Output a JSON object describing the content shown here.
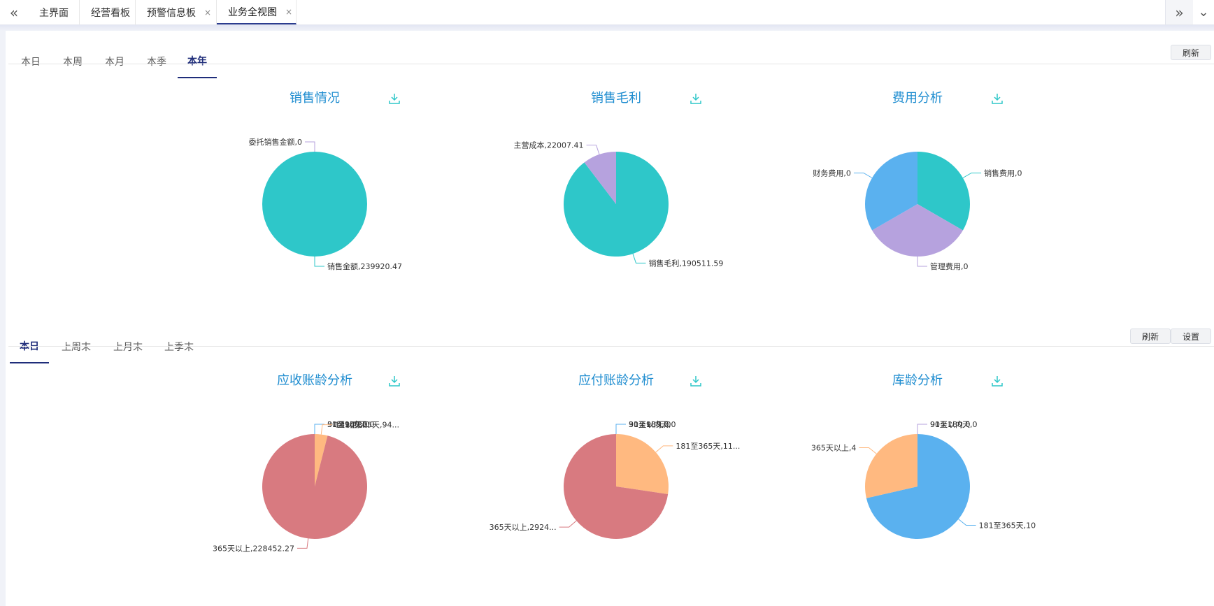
{
  "tabs": [
    {
      "label": "主界面",
      "closable": false,
      "active": false
    },
    {
      "label": "经营看板",
      "closable": false,
      "active": false
    },
    {
      "label": "预警信息板",
      "closable": true,
      "active": false
    },
    {
      "label": "业务全视图",
      "closable": true,
      "active": true
    }
  ],
  "icons": {
    "nav_left": "«",
    "nav_right": "»",
    "dropdown": "⌄",
    "close": "×"
  },
  "section1": {
    "periods": [
      "本日",
      "本周",
      "本月",
      "本季",
      "本年"
    ],
    "active_period": "本年",
    "refresh_label": "刷新"
  },
  "section2": {
    "periods": [
      "本日",
      "上周末",
      "上月末",
      "上季末"
    ],
    "active_period": "本日",
    "refresh_label": "刷新",
    "settings_label": "设置"
  },
  "colors": {
    "teal": "#2ec7c9",
    "purple": "#b6a2de",
    "blue": "#5ab1ef",
    "orange": "#ffb980",
    "red": "#d87a80",
    "title": "#1f8dd0"
  },
  "chart_data": [
    {
      "type": "pie",
      "title": "销售情况",
      "slices": [
        {
          "name": "销售金额",
          "value": 239920.47,
          "label": "销售金额,239920.47",
          "color": "#2ec7c9"
        },
        {
          "name": "委托销售金额",
          "value": 0,
          "label": "委托销售金额,0",
          "color": "#b6a2de"
        }
      ]
    },
    {
      "type": "pie",
      "title": "销售毛利",
      "slices": [
        {
          "name": "销售毛利",
          "value": 190511.59,
          "label": "销售毛利,190511.59",
          "color": "#2ec7c9"
        },
        {
          "name": "主营成本",
          "value": 22007.41,
          "label": "主营成本,22007.41",
          "color": "#b6a2de"
        }
      ]
    },
    {
      "type": "pie",
      "title": "费用分析",
      "slices": [
        {
          "name": "销售费用",
          "value": 0,
          "label": "销售费用,0",
          "color": "#2ec7c9"
        },
        {
          "name": "管理费用",
          "value": 0,
          "label": "管理费用,0",
          "color": "#b6a2de"
        },
        {
          "name": "财务费用",
          "value": 0,
          "label": "财务费用,0",
          "color": "#5ab1ef"
        }
      ]
    },
    {
      "type": "pie",
      "title": "应收账龄分析",
      "slices": [
        {
          "name": "30天以内",
          "value": 0,
          "label": "30天以内,0",
          "color": "#2ec7c9"
        },
        {
          "name": "31至90天",
          "value": 0,
          "label": "31至90天,0",
          "color": "#b6a2de"
        },
        {
          "name": "91至180天",
          "value": 0,
          "label": "91至180天,0",
          "color": "#5ab1ef"
        },
        {
          "name": "181至365天",
          "value": 9400,
          "label": "181至365天,94...",
          "color": "#ffb980"
        },
        {
          "name": "365天以上",
          "value": 228452.27,
          "label": "365天以上,228452.27",
          "color": "#d87a80"
        }
      ]
    },
    {
      "type": "pie",
      "title": "应付账龄分析",
      "slices": [
        {
          "name": "30天以内",
          "value": 0,
          "label": "30天以内,0",
          "color": "#2ec7c9"
        },
        {
          "name": "31至90天",
          "value": 0,
          "label": "31至90天,0",
          "color": "#b6a2de"
        },
        {
          "name": "91至180天",
          "value": 0,
          "label": "91至180天,0",
          "color": "#5ab1ef"
        },
        {
          "name": "181至365天",
          "value": 110000,
          "label": "181至365天,11...",
          "color": "#ffb980"
        },
        {
          "name": "365天以上",
          "value": 292400,
          "label": "365天以上,2924...",
          "color": "#d87a80"
        }
      ]
    },
    {
      "type": "pie",
      "title": "库龄分析",
      "slices": [
        {
          "name": "90天以内",
          "value": 0,
          "label": "90天以内,0",
          "color": "#2ec7c9"
        },
        {
          "name": "91至180天",
          "value": 0,
          "label": "91至180天,0",
          "color": "#b6a2de"
        },
        {
          "name": "181至365天",
          "value": 10,
          "label": "181至365天,10",
          "color": "#5ab1ef"
        },
        {
          "name": "365天以上",
          "value": 4,
          "label": "365天以上,4",
          "color": "#ffb980"
        }
      ]
    }
  ]
}
